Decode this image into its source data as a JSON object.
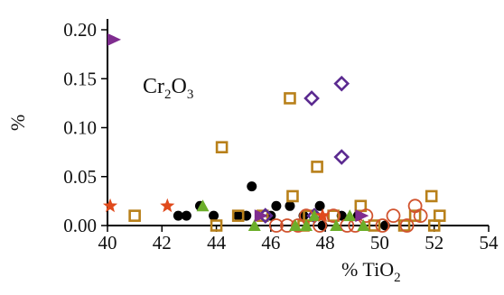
{
  "chart_data": {
    "type": "scatter",
    "title": "",
    "xlabel": {
      "main": "% TiO",
      "sub": "2"
    },
    "ylabel": "%",
    "annotation": {
      "main": "Cr",
      "sub1": "2",
      "mid": "O",
      "sub2": "3"
    },
    "xlim": [
      40,
      54
    ],
    "ylim": [
      0,
      0.2
    ],
    "x_ticks": [
      "40",
      "42",
      "44",
      "46",
      "48",
      "50",
      "52",
      "54"
    ],
    "y_ticks": [
      "0.00",
      "0.05",
      "0.10",
      "0.15",
      "0.20"
    ],
    "grid": false,
    "legend": "none",
    "colors": {
      "black": "#000000",
      "tan": "#b8801a",
      "purple": "#5b2a90",
      "magenta": "#7f2c8f",
      "orange": "#d1532e",
      "star": "#e04a1c",
      "green": "#6cae2a"
    },
    "series": [
      {
        "marker": "filled-circle",
        "color": "#000000",
        "points": [
          [
            42.6,
            0.01
          ],
          [
            42.9,
            0.01
          ],
          [
            43.4,
            0.02
          ],
          [
            43.9,
            0.01
          ],
          [
            44.8,
            0.01
          ],
          [
            45.1,
            0.01
          ],
          [
            45.3,
            0.04
          ],
          [
            46.0,
            0.01
          ],
          [
            46.2,
            0.02
          ],
          [
            47.2,
            0.01
          ],
          [
            47.8,
            0.02
          ],
          [
            47.9,
            0.0
          ],
          [
            48.6,
            0.01
          ],
          [
            49.2,
            0.01
          ],
          [
            50.2,
            0.0
          ],
          [
            46.7,
            0.02
          ]
        ]
      },
      {
        "marker": "open-square",
        "color": "#b8801a",
        "points": [
          [
            41.0,
            0.01
          ],
          [
            44.2,
            0.08
          ],
          [
            44.0,
            0.0
          ],
          [
            44.8,
            0.01
          ],
          [
            45.7,
            0.01
          ],
          [
            46.7,
            0.13
          ],
          [
            46.8,
            0.03
          ],
          [
            47.2,
            0.0
          ],
          [
            47.4,
            0.01
          ],
          [
            47.7,
            0.06
          ],
          [
            48.3,
            0.01
          ],
          [
            49.3,
            0.02
          ],
          [
            49.8,
            0.0
          ],
          [
            50.9,
            0.0
          ],
          [
            51.3,
            0.01
          ],
          [
            51.9,
            0.03
          ],
          [
            52.2,
            0.01
          ],
          [
            52.0,
            0.0
          ]
        ]
      },
      {
        "marker": "open-diamond",
        "color": "#5b2a90",
        "points": [
          [
            47.5,
            0.13
          ],
          [
            48.6,
            0.145
          ],
          [
            48.6,
            0.07
          ],
          [
            45.8,
            0.01
          ],
          [
            47.6,
            0.01
          ]
        ]
      },
      {
        "marker": "open-circle",
        "color": "#d1532e",
        "points": [
          [
            46.2,
            0.0
          ],
          [
            46.6,
            0.0
          ],
          [
            47.3,
            0.01
          ],
          [
            47.8,
            0.0
          ],
          [
            48.3,
            0.01
          ],
          [
            48.8,
            0.0
          ],
          [
            49.5,
            0.01
          ],
          [
            50.1,
            0.0
          ],
          [
            50.5,
            0.01
          ],
          [
            51.0,
            0.0
          ],
          [
            51.3,
            0.02
          ],
          [
            51.5,
            0.01
          ],
          [
            49.1,
            0.0
          ],
          [
            47.0,
            0.0
          ]
        ]
      },
      {
        "marker": "filled-triangle-up",
        "color": "#6cae2a",
        "points": [
          [
            43.5,
            0.02
          ],
          [
            45.4,
            0.0
          ],
          [
            46.9,
            0.0
          ],
          [
            47.6,
            0.01
          ],
          [
            48.4,
            0.0
          ],
          [
            48.9,
            0.01
          ],
          [
            49.4,
            0.0
          ],
          [
            47.3,
            0.0
          ]
        ]
      },
      {
        "marker": "filled-star",
        "color": "#e04a1c",
        "points": [
          [
            40.1,
            0.02
          ],
          [
            42.2,
            0.02
          ],
          [
            47.9,
            0.01
          ]
        ]
      },
      {
        "marker": "filled-triangle-right",
        "color": "#7f2c8f",
        "points": [
          [
            40.2,
            0.19
          ],
          [
            49.3,
            0.01
          ],
          [
            45.6,
            0.01
          ]
        ]
      }
    ]
  }
}
